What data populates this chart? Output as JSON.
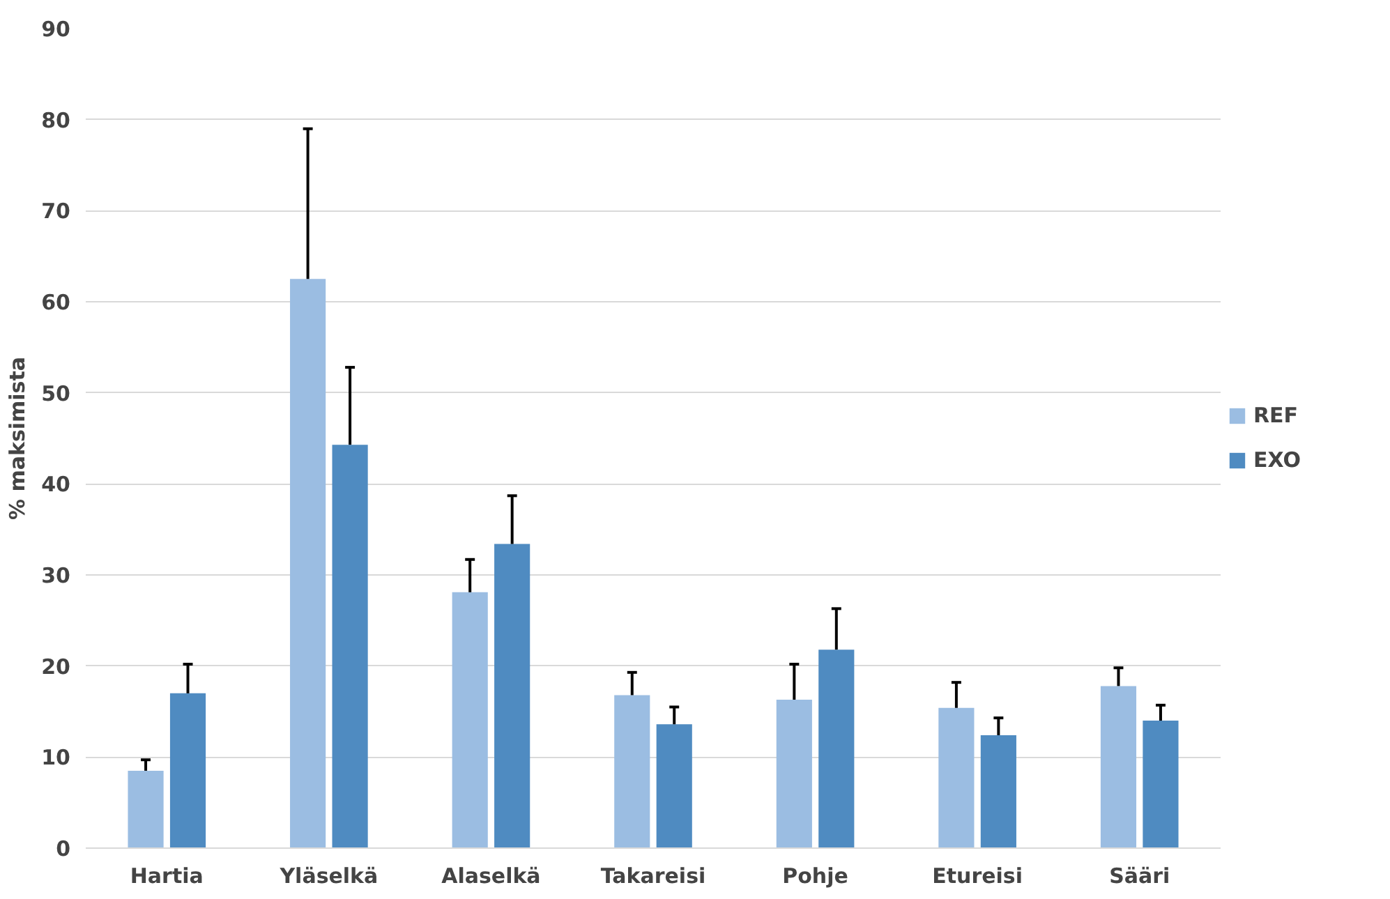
{
  "chart_data": {
    "type": "bar",
    "ylabel": "% maksimista",
    "categories": [
      "Hartia",
      "Yläselkä",
      "Alaselkä",
      "Takareisi",
      "Pohje",
      "Etureisi",
      "Sääri"
    ],
    "series": [
      {
        "name": "REF",
        "color": "#9bbde2",
        "values": [
          8.5,
          62.5,
          28.1,
          16.8,
          16.3,
          15.4,
          17.8
        ],
        "errors": [
          [
            8.5,
            9.7
          ],
          [
            62.5,
            79.0
          ],
          [
            28.1,
            31.7
          ],
          [
            16.8,
            19.3
          ],
          [
            16.3,
            20.2
          ],
          [
            15.4,
            18.2
          ],
          [
            17.8,
            19.8
          ]
        ]
      },
      {
        "name": "EXO",
        "color": "#4f8bc1",
        "values": [
          17.0,
          44.3,
          33.4,
          13.6,
          21.8,
          12.4,
          14.0
        ],
        "errors": [
          [
            17.0,
            20.2
          ],
          [
            44.3,
            52.8
          ],
          [
            33.4,
            38.7
          ],
          [
            13.6,
            15.5
          ],
          [
            21.8,
            26.3
          ],
          [
            12.4,
            14.3
          ],
          [
            14.0,
            15.7
          ]
        ]
      }
    ],
    "ylim": [
      0,
      90
    ],
    "yticks": [
      0,
      10,
      20,
      30,
      40,
      50,
      60,
      70,
      80,
      90
    ],
    "grid": "y",
    "legend": "right"
  }
}
